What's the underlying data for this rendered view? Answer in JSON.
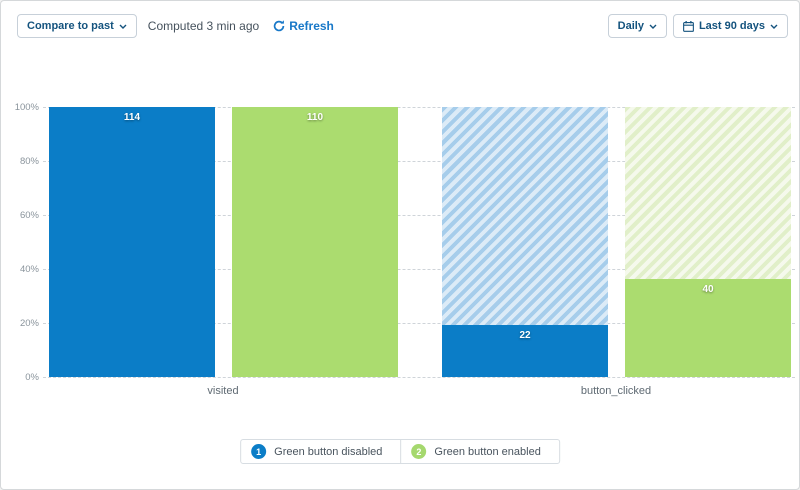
{
  "header": {
    "compare_button_label": "Compare to past",
    "computed_text": "Computed 3 min ago",
    "refresh_label": "Refresh",
    "granularity_button_label": "Daily",
    "date_range_button_label": "Last 90 days"
  },
  "chart_data": {
    "type": "bar",
    "subtype": "grouped_percentage_funnel",
    "title": "",
    "xlabel": "",
    "ylabel": "",
    "categories": [
      "visited",
      "button_clicked"
    ],
    "series": [
      {
        "name": "Green button disabled",
        "values": [
          114,
          22
        ],
        "color": "#0b7dc7",
        "hatch_stripe": "#a6cdeb",
        "hatch_bg": "#dcebf7"
      },
      {
        "name": "Green button enabled",
        "values": [
          110,
          40
        ],
        "color": "#abdc6f",
        "hatch_stripe": "#e1efc9",
        "hatch_bg": "#f5f9ec"
      }
    ],
    "ylim": [
      0,
      100
    ],
    "ytick_labels": [
      "0%",
      "20%",
      "40%",
      "60%",
      "80%",
      "100%"
    ],
    "grid": "horizontal_dashed",
    "legend_position": "bottom",
    "bar_label_style": "absolute_counts_on_bars",
    "hatch_note": "step-2 bars show hatched remainder up to 100% of step 1"
  },
  "legend": {
    "items": [
      {
        "number": "1",
        "label": "Green button disabled",
        "color": "#0b7dc7"
      },
      {
        "number": "2",
        "label": "Green button enabled",
        "color": "#a5d86e"
      }
    ]
  },
  "colors": {
    "accent_link": "#1878c8",
    "button_text": "#14537e",
    "axis_tick": "#8a949c",
    "axis_category": "#5f6a73"
  }
}
